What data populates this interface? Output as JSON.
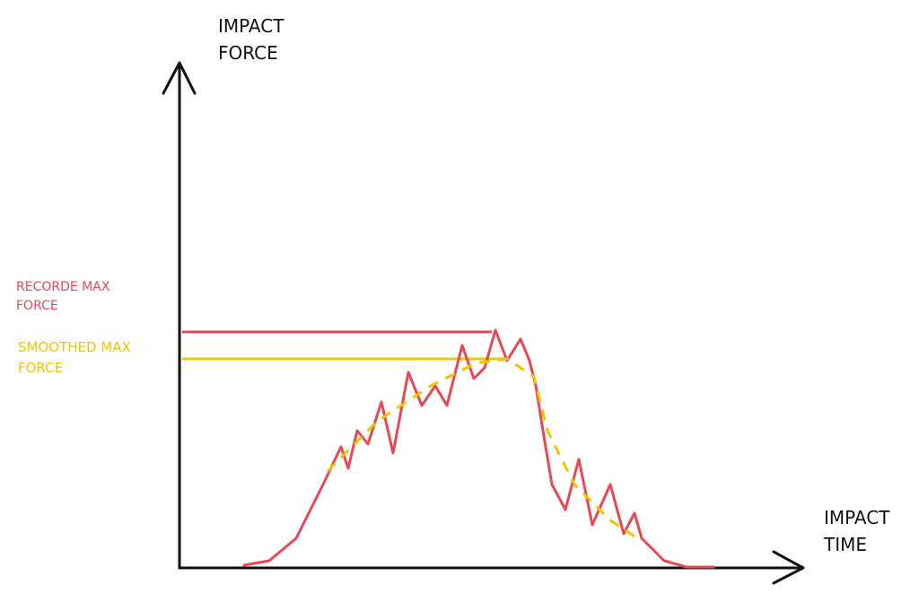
{
  "axes": {
    "y_label": "IMPACT FORCE",
    "x_label": "IMPACT TIME"
  },
  "annotations": [
    {
      "label": "RECORDE MAX FORCE"
    },
    {
      "label": "SMOOTHED MAX FORCE"
    }
  ]
}
